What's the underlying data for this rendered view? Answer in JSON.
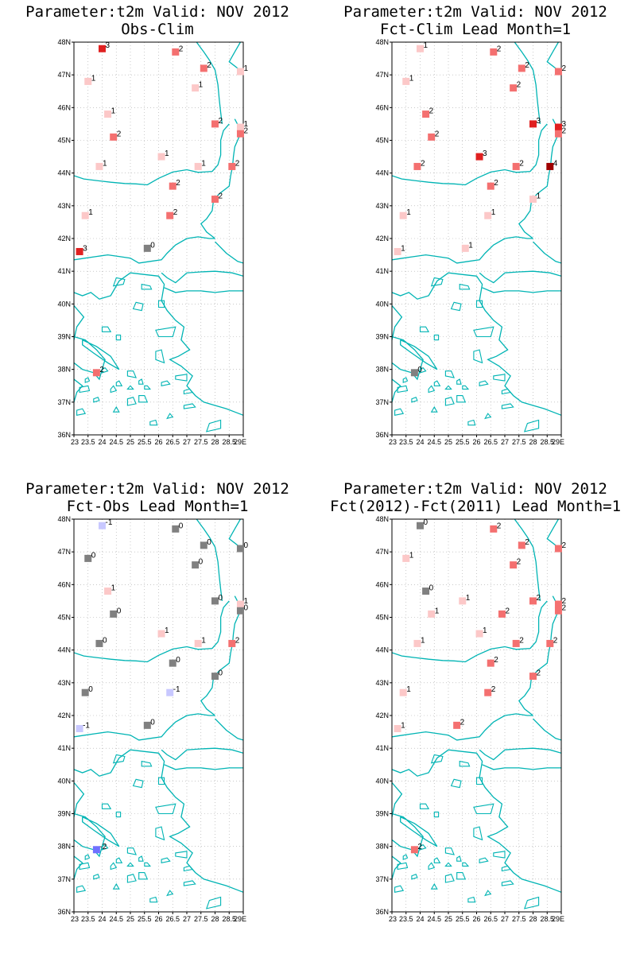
{
  "common": {
    "lat_ticks": [
      "36N",
      "37N",
      "38N",
      "39N",
      "40N",
      "41N",
      "42N",
      "43N",
      "44N",
      "45N",
      "46N",
      "47N",
      "48N"
    ],
    "lon_ticks": [
      "23",
      "23.5",
      "24",
      "24.5",
      "25",
      "25.5",
      "26",
      "26.5",
      "27",
      "27.5",
      "28",
      "28.5",
      "29E"
    ],
    "colors": {
      "coast": "#00b4b4",
      "neutral": "#808080",
      "pos1": "#fcc8c8",
      "pos2": "#f47070",
      "pos3": "#e02020",
      "pos4": "#a00000",
      "neg1": "#c8c8ff",
      "neg2": "#7070ff"
    }
  },
  "panels": [
    {
      "title1": "Parameter:t2m Valid: NOV 2012",
      "title2": "Obs-Clim",
      "stations": [
        {
          "lon": 24.0,
          "lat": 47.8,
          "v": 3
        },
        {
          "lon": 26.6,
          "lat": 47.7,
          "v": 2
        },
        {
          "lon": 27.6,
          "lat": 47.2,
          "v": 2
        },
        {
          "lon": 28.9,
          "lat": 47.1,
          "v": 1
        },
        {
          "lon": 23.5,
          "lat": 46.8,
          "v": 1
        },
        {
          "lon": 27.3,
          "lat": 46.6,
          "v": 1
        },
        {
          "lon": 24.2,
          "lat": 45.8,
          "v": 1
        },
        {
          "lon": 28.0,
          "lat": 45.5,
          "v": 2
        },
        {
          "lon": 28.9,
          "lat": 45.4,
          "v": 1
        },
        {
          "lon": 24.4,
          "lat": 45.1,
          "v": 2
        },
        {
          "lon": 28.9,
          "lat": 45.2,
          "v": 2
        },
        {
          "lon": 26.1,
          "lat": 44.5,
          "v": 1
        },
        {
          "lon": 23.9,
          "lat": 44.2,
          "v": 1
        },
        {
          "lon": 27.4,
          "lat": 44.2,
          "v": 1
        },
        {
          "lon": 28.6,
          "lat": 44.2,
          "v": 2
        },
        {
          "lon": 26.5,
          "lat": 43.6,
          "v": 2
        },
        {
          "lon": 28.0,
          "lat": 43.2,
          "v": 2
        },
        {
          "lon": 23.4,
          "lat": 42.7,
          "v": 1
        },
        {
          "lon": 26.4,
          "lat": 42.7,
          "v": 2
        },
        {
          "lon": 25.6,
          "lat": 41.7,
          "v": 0
        },
        {
          "lon": 23.2,
          "lat": 41.6,
          "v": 3
        },
        {
          "lon": 23.8,
          "lat": 37.9,
          "v": 2
        }
      ]
    },
    {
      "title1": "Parameter:t2m Valid: NOV 2012",
      "title2": "Fct-Clim Lead Month=1",
      "stations": [
        {
          "lon": 24.0,
          "lat": 47.8,
          "v": 1
        },
        {
          "lon": 26.6,
          "lat": 47.7,
          "v": 2
        },
        {
          "lon": 27.6,
          "lat": 47.2,
          "v": 2
        },
        {
          "lon": 28.9,
          "lat": 47.1,
          "v": 2
        },
        {
          "lon": 23.5,
          "lat": 46.8,
          "v": 1
        },
        {
          "lon": 27.3,
          "lat": 46.6,
          "v": 2
        },
        {
          "lon": 24.2,
          "lat": 45.8,
          "v": 2
        },
        {
          "lon": 28.0,
          "lat": 45.5,
          "v": 3
        },
        {
          "lon": 28.9,
          "lat": 45.4,
          "v": 3
        },
        {
          "lon": 24.4,
          "lat": 45.1,
          "v": 2
        },
        {
          "lon": 28.9,
          "lat": 45.2,
          "v": 2
        },
        {
          "lon": 26.1,
          "lat": 44.5,
          "v": 3
        },
        {
          "lon": 23.9,
          "lat": 44.2,
          "v": 2
        },
        {
          "lon": 27.4,
          "lat": 44.2,
          "v": 2
        },
        {
          "lon": 28.6,
          "lat": 44.2,
          "v": 4
        },
        {
          "lon": 26.5,
          "lat": 43.6,
          "v": 2
        },
        {
          "lon": 28.0,
          "lat": 43.2,
          "v": 1
        },
        {
          "lon": 23.4,
          "lat": 42.7,
          "v": 1
        },
        {
          "lon": 26.4,
          "lat": 42.7,
          "v": 1
        },
        {
          "lon": 25.6,
          "lat": 41.7,
          "v": 1
        },
        {
          "lon": 23.2,
          "lat": 41.6,
          "v": 1
        },
        {
          "lon": 23.8,
          "lat": 37.9,
          "v": 0
        }
      ]
    },
    {
      "title1": "Parameter:t2m Valid: NOV 2012",
      "title2": "Fct-Obs Lead Month=1",
      "stations": [
        {
          "lon": 24.0,
          "lat": 47.8,
          "v": -1
        },
        {
          "lon": 26.6,
          "lat": 47.7,
          "v": 0
        },
        {
          "lon": 27.6,
          "lat": 47.2,
          "v": 0
        },
        {
          "lon": 28.9,
          "lat": 47.1,
          "v": 0
        },
        {
          "lon": 23.5,
          "lat": 46.8,
          "v": 0
        },
        {
          "lon": 27.3,
          "lat": 46.6,
          "v": 0
        },
        {
          "lon": 24.2,
          "lat": 45.8,
          "v": 1
        },
        {
          "lon": 28.0,
          "lat": 45.5,
          "v": 0
        },
        {
          "lon": 28.9,
          "lat": 45.4,
          "v": 1
        },
        {
          "lon": 24.4,
          "lat": 45.1,
          "v": 0
        },
        {
          "lon": 28.9,
          "lat": 45.2,
          "v": 0
        },
        {
          "lon": 26.1,
          "lat": 44.5,
          "v": 1
        },
        {
          "lon": 23.9,
          "lat": 44.2,
          "v": 0
        },
        {
          "lon": 27.4,
          "lat": 44.2,
          "v": 1
        },
        {
          "lon": 28.6,
          "lat": 44.2,
          "v": 2
        },
        {
          "lon": 26.5,
          "lat": 43.6,
          "v": 0
        },
        {
          "lon": 28.0,
          "lat": 43.2,
          "v": 0
        },
        {
          "lon": 23.4,
          "lat": 42.7,
          "v": 0
        },
        {
          "lon": 26.4,
          "lat": 42.7,
          "v": -1
        },
        {
          "lon": 25.6,
          "lat": 41.7,
          "v": 0
        },
        {
          "lon": 23.2,
          "lat": 41.6,
          "v": -1
        },
        {
          "lon": 23.8,
          "lat": 37.9,
          "v": -2
        }
      ]
    },
    {
      "title1": "Parameter:t2m Valid: NOV 2012",
      "title2": "Fct(2012)-Fct(2011) Lead Month=1",
      "stations": [
        {
          "lon": 24.0,
          "lat": 47.8,
          "v": 0
        },
        {
          "lon": 26.6,
          "lat": 47.7,
          "v": 2
        },
        {
          "lon": 27.6,
          "lat": 47.2,
          "v": 2
        },
        {
          "lon": 28.9,
          "lat": 47.1,
          "v": 2
        },
        {
          "lon": 23.5,
          "lat": 46.8,
          "v": 1
        },
        {
          "lon": 27.3,
          "lat": 46.6,
          "v": 2
        },
        {
          "lon": 24.2,
          "lat": 45.8,
          "v": 0
        },
        {
          "lon": 28.0,
          "lat": 45.5,
          "v": 2
        },
        {
          "lon": 28.9,
          "lat": 45.4,
          "v": 2
        },
        {
          "lon": 25.5,
          "lat": 45.5,
          "v": 1
        },
        {
          "lon": 24.4,
          "lat": 45.1,
          "v": 1
        },
        {
          "lon": 26.9,
          "lat": 45.1,
          "v": 2
        },
        {
          "lon": 28.9,
          "lat": 45.2,
          "v": 2
        },
        {
          "lon": 26.1,
          "lat": 44.5,
          "v": 1
        },
        {
          "lon": 23.9,
          "lat": 44.2,
          "v": 1
        },
        {
          "lon": 27.4,
          "lat": 44.2,
          "v": 2
        },
        {
          "lon": 28.6,
          "lat": 44.2,
          "v": 2
        },
        {
          "lon": 26.5,
          "lat": 43.6,
          "v": 2
        },
        {
          "lon": 28.0,
          "lat": 43.2,
          "v": 2
        },
        {
          "lon": 23.4,
          "lat": 42.7,
          "v": 1
        },
        {
          "lon": 26.4,
          "lat": 42.7,
          "v": 2
        },
        {
          "lon": 25.3,
          "lat": 41.7,
          "v": 2
        },
        {
          "lon": 23.2,
          "lat": 41.6,
          "v": 1
        },
        {
          "lon": 23.8,
          "lat": 37.9,
          "v": 2
        }
      ]
    }
  ]
}
